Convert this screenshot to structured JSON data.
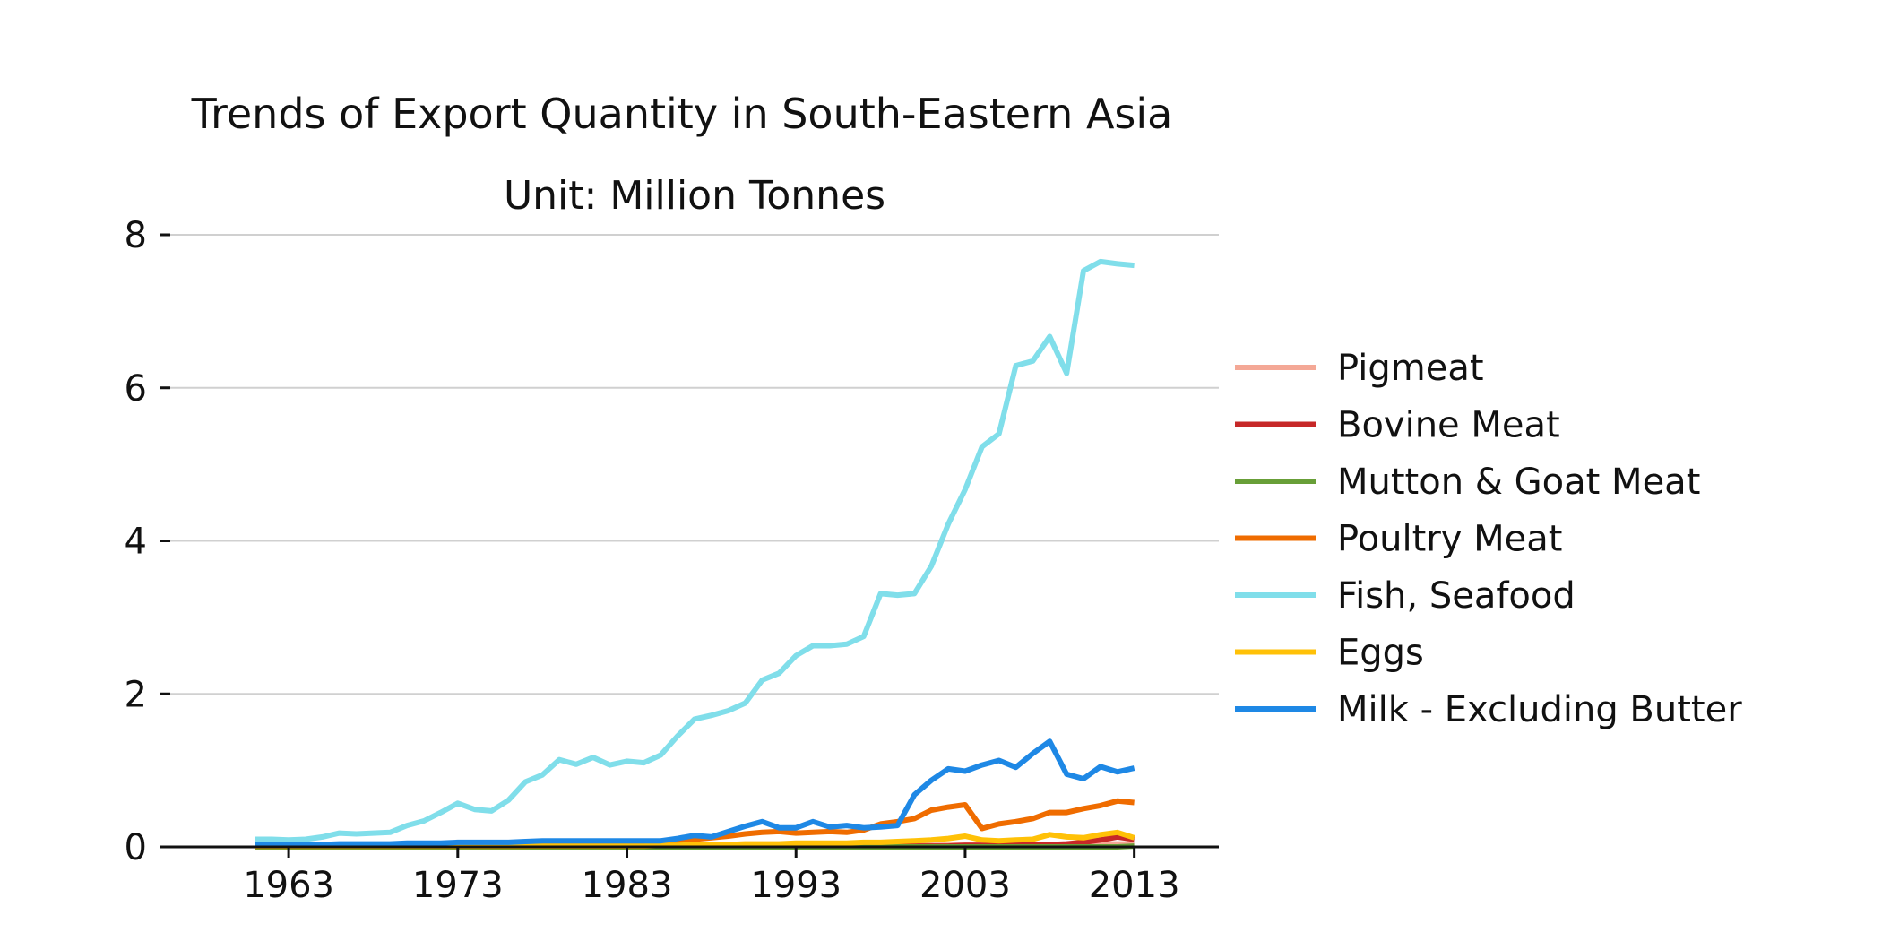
{
  "chart_data": {
    "type": "line",
    "title": "Trends of Export Quantity in South-Eastern Asia",
    "subtitle": "Unit: Million Tonnes",
    "xlabel": "",
    "ylabel": "",
    "xlim": [
      1956,
      2018
    ],
    "ylim": [
      0,
      8
    ],
    "xticks": [
      1963,
      1973,
      1983,
      1993,
      2003,
      2013
    ],
    "yticks": [
      0,
      2,
      4,
      6,
      8
    ],
    "grid": "horizontal",
    "legend_position": "right",
    "x": [
      1961,
      1962,
      1963,
      1964,
      1965,
      1966,
      1967,
      1968,
      1969,
      1970,
      1971,
      1972,
      1973,
      1974,
      1975,
      1976,
      1977,
      1978,
      1979,
      1980,
      1981,
      1982,
      1983,
      1984,
      1985,
      1986,
      1987,
      1988,
      1989,
      1990,
      1991,
      1992,
      1993,
      1994,
      1995,
      1996,
      1997,
      1998,
      1999,
      2000,
      2001,
      2002,
      2003,
      2004,
      2005,
      2006,
      2007,
      2008,
      2009,
      2010,
      2011,
      2012,
      2013
    ],
    "series": [
      {
        "name": "Pigmeat",
        "color": "#f4a896",
        "values": [
          0.01,
          0.01,
          0.01,
          0.01,
          0.01,
          0.01,
          0.01,
          0.01,
          0.01,
          0.01,
          0.01,
          0.01,
          0.01,
          0.01,
          0.01,
          0.01,
          0.01,
          0.01,
          0.01,
          0.01,
          0.01,
          0.01,
          0.01,
          0.01,
          0.01,
          0.01,
          0.01,
          0.01,
          0.01,
          0.01,
          0.02,
          0.02,
          0.02,
          0.02,
          0.02,
          0.02,
          0.02,
          0.02,
          0.02,
          0.02,
          0.02,
          0.02,
          0.03,
          0.03,
          0.03,
          0.03,
          0.03,
          0.03,
          0.03,
          0.03,
          0.04,
          0.04,
          0.04
        ]
      },
      {
        "name": "Bovine Meat",
        "color": "#c62828",
        "values": [
          0.01,
          0.01,
          0.01,
          0.01,
          0.01,
          0.01,
          0.01,
          0.01,
          0.01,
          0.01,
          0.01,
          0.01,
          0.01,
          0.01,
          0.01,
          0.01,
          0.01,
          0.01,
          0.01,
          0.01,
          0.01,
          0.01,
          0.01,
          0.01,
          0.01,
          0.01,
          0.01,
          0.01,
          0.01,
          0.01,
          0.01,
          0.01,
          0.01,
          0.01,
          0.01,
          0.01,
          0.01,
          0.01,
          0.01,
          0.01,
          0.01,
          0.01,
          0.02,
          0.02,
          0.02,
          0.03,
          0.03,
          0.03,
          0.04,
          0.06,
          0.09,
          0.13,
          0.1
        ]
      },
      {
        "name": "Mutton & Goat Meat",
        "color": "#689f38",
        "values": [
          0,
          0,
          0,
          0,
          0,
          0,
          0,
          0,
          0,
          0,
          0,
          0,
          0,
          0,
          0,
          0,
          0,
          0,
          0,
          0,
          0,
          0,
          0,
          0,
          0,
          0,
          0,
          0,
          0,
          0,
          0,
          0,
          0,
          0,
          0,
          0,
          0,
          0,
          0,
          0,
          0,
          0,
          0,
          0,
          0,
          0,
          0,
          0,
          0,
          0,
          0,
          0,
          0.01
        ]
      },
      {
        "name": "Poultry Meat",
        "color": "#ef6c00",
        "values": [
          0.01,
          0.01,
          0.01,
          0.01,
          0.01,
          0.01,
          0.01,
          0.01,
          0.01,
          0.01,
          0.01,
          0.01,
          0.01,
          0.01,
          0.01,
          0.01,
          0.01,
          0.02,
          0.02,
          0.02,
          0.02,
          0.03,
          0.04,
          0.05,
          0.06,
          0.08,
          0.1,
          0.12,
          0.14,
          0.17,
          0.19,
          0.2,
          0.18,
          0.19,
          0.2,
          0.19,
          0.22,
          0.3,
          0.33,
          0.37,
          0.48,
          0.52,
          0.55,
          0.24,
          0.3,
          0.33,
          0.37,
          0.45,
          0.45,
          0.5,
          0.54,
          0.6,
          0.58
        ]
      },
      {
        "name": "Fish, Seafood",
        "color": "#80deea",
        "values": [
          0.1,
          0.1,
          0.09,
          0.1,
          0.13,
          0.18,
          0.17,
          0.18,
          0.19,
          0.28,
          0.34,
          0.45,
          0.57,
          0.49,
          0.47,
          0.61,
          0.85,
          0.94,
          1.14,
          1.08,
          1.17,
          1.07,
          1.12,
          1.1,
          1.2,
          1.45,
          1.67,
          1.72,
          1.78,
          1.88,
          2.18,
          2.27,
          2.5,
          2.63,
          2.63,
          2.65,
          2.75,
          3.31,
          3.29,
          3.31,
          3.67,
          4.22,
          4.67,
          5.23,
          5.4,
          6.29,
          6.35,
          6.67,
          6.19,
          7.53,
          7.65,
          7.62,
          7.6
        ]
      },
      {
        "name": "Eggs",
        "color": "#ffc107",
        "values": [
          0.01,
          0.01,
          0.01,
          0.01,
          0.01,
          0.01,
          0.01,
          0.01,
          0.01,
          0.01,
          0.01,
          0.01,
          0.01,
          0.01,
          0.01,
          0.01,
          0.01,
          0.01,
          0.01,
          0.01,
          0.01,
          0.01,
          0.01,
          0.01,
          0.02,
          0.02,
          0.03,
          0.03,
          0.03,
          0.04,
          0.04,
          0.04,
          0.05,
          0.05,
          0.05,
          0.05,
          0.06,
          0.06,
          0.07,
          0.08,
          0.09,
          0.11,
          0.14,
          0.09,
          0.08,
          0.09,
          0.1,
          0.16,
          0.13,
          0.12,
          0.16,
          0.19,
          0.12
        ]
      },
      {
        "name": "Milk - Excluding Butter",
        "color": "#1e88e5",
        "values": [
          0.03,
          0.03,
          0.03,
          0.03,
          0.03,
          0.04,
          0.04,
          0.04,
          0.04,
          0.05,
          0.05,
          0.05,
          0.06,
          0.06,
          0.06,
          0.06,
          0.07,
          0.08,
          0.08,
          0.08,
          0.08,
          0.08,
          0.08,
          0.08,
          0.08,
          0.11,
          0.15,
          0.13,
          0.2,
          0.27,
          0.33,
          0.25,
          0.25,
          0.33,
          0.26,
          0.28,
          0.25,
          0.26,
          0.28,
          0.68,
          0.87,
          1.02,
          0.99,
          1.07,
          1.13,
          1.04,
          1.22,
          1.38,
          0.95,
          0.89,
          1.05,
          0.98,
          1.03
        ]
      }
    ]
  }
}
